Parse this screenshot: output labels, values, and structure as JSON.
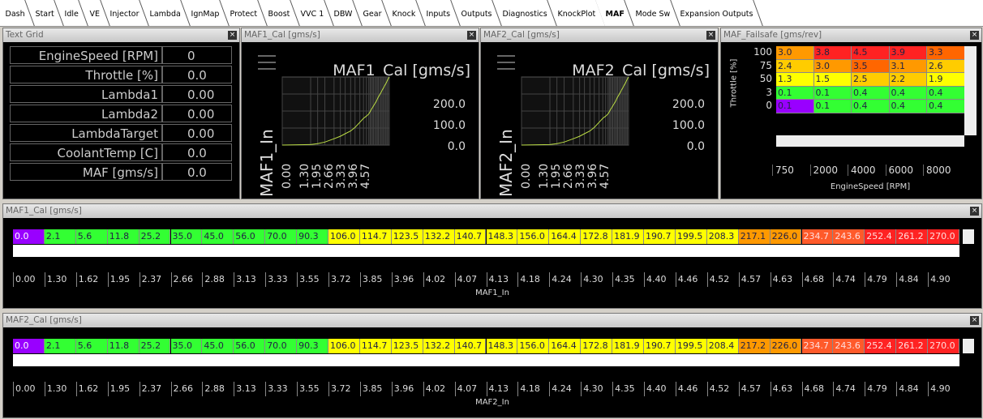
{
  "tabs": [
    "Dash",
    "Start",
    "Idle",
    "VE",
    "Injector",
    "Lambda",
    "IgnMap",
    "Protect",
    "Boost",
    "VVC 1",
    "DBW",
    "Gear",
    "Knock",
    "Inputs",
    "Outputs",
    "Diagnostics",
    "KnockPlot",
    "MAF",
    "Mode Sw",
    "Expansion Outputs"
  ],
  "text_grid": {
    "title": "Text Grid",
    "rows": [
      {
        "label": "EngineSpeed [RPM]",
        "value": "0"
      },
      {
        "label": "Throttle [%]",
        "value": "0.0"
      },
      {
        "label": "Lambda1",
        "value": "0.00"
      },
      {
        "label": "Lambda2",
        "value": "0.00"
      },
      {
        "label": "LambdaTarget",
        "value": "0.00"
      },
      {
        "label": "CoolantTemp [C]",
        "value": "0.0"
      },
      {
        "label": "MAF [gms/s]",
        "value": "0.0"
      }
    ]
  },
  "maf1_chart": {
    "title": "MAF1_Cal [gms/s]",
    "heading": "MAF1_Cal [gms/s]",
    "y_labels": [
      "200.0",
      "100.0",
      "0.0"
    ],
    "x_label": "MAF1_In",
    "x_labels": [
      "0.00",
      "1.30",
      "1.95",
      "2.66",
      "3.33",
      "3.96",
      "4.57"
    ]
  },
  "maf2_chart": {
    "title": "MAF2_Cal [gms/s]",
    "heading": "MAF2_Cal [gms/s]",
    "y_labels": [
      "200.0",
      "100.0",
      "0.0"
    ],
    "x_label": "MAF2_In",
    "x_labels": [
      "0.00",
      "1.30",
      "1.95",
      "2.66",
      "3.33",
      "3.96",
      "4.57"
    ]
  },
  "failsafe": {
    "title": "MAF_Failsafe [gms/rev]",
    "row_axis_label": "Throttle [%]",
    "col_axis_label": "EngineSpeed [RPM]",
    "row_labels": [
      "100",
      "75",
      "50",
      "3",
      "0"
    ],
    "col_labels": [
      "750",
      "2000",
      "4000",
      "6000",
      "8000"
    ],
    "cells": [
      [
        "3.0",
        "3.8",
        "4.5",
        "3.9",
        "3.3"
      ],
      [
        "2.4",
        "3.0",
        "3.5",
        "3.1",
        "2.6"
      ],
      [
        "1.3",
        "1.5",
        "2.5",
        "2.2",
        "1.9"
      ],
      [
        "0.1",
        "0.1",
        "0.4",
        "0.4",
        "0.4"
      ],
      [
        "0.1",
        "0.1",
        "0.4",
        "0.4",
        "0.4"
      ]
    ]
  },
  "maf1_table": {
    "title": "MAF1_Cal [gms/s]",
    "axis_label": "MAF1_In",
    "values": [
      "0.0",
      "2.1",
      "5.6",
      "11.8",
      "25.2",
      "35.0",
      "45.0",
      "56.0",
      "70.0",
      "90.3",
      "106.0",
      "114.7",
      "123.5",
      "132.2",
      "140.7",
      "148.3",
      "156.0",
      "164.4",
      "172.8",
      "181.9",
      "190.7",
      "199.5",
      "208.3",
      "217.1",
      "226.0",
      "234.7",
      "243.6",
      "252.4",
      "261.2",
      "270.0"
    ],
    "axis": [
      "0.00",
      "1.30",
      "1.62",
      "1.95",
      "2.37",
      "2.66",
      "2.88",
      "3.13",
      "3.33",
      "3.55",
      "3.72",
      "3.85",
      "3.96",
      "4.02",
      "4.07",
      "4.13",
      "4.18",
      "4.24",
      "4.30",
      "4.35",
      "4.40",
      "4.46",
      "4.52",
      "4.57",
      "4.63",
      "4.68",
      "4.74",
      "4.79",
      "4.84",
      "4.90"
    ]
  },
  "maf2_table": {
    "title": "MAF2_Cal [gms/s]",
    "axis_label": "MAF2_In",
    "values": [
      "0.0",
      "2.1",
      "5.6",
      "11.8",
      "25.2",
      "35.0",
      "45.0",
      "56.0",
      "70.0",
      "90.3",
      "106.0",
      "114.7",
      "123.5",
      "132.2",
      "140.7",
      "148.3",
      "156.0",
      "164.4",
      "172.8",
      "181.9",
      "190.7",
      "199.5",
      "208.4",
      "217.2",
      "226.0",
      "234.7",
      "243.6",
      "252.4",
      "261.2",
      "270.0"
    ],
    "axis": [
      "0.00",
      "1.30",
      "1.62",
      "1.95",
      "2.37",
      "2.66",
      "2.88",
      "3.13",
      "3.33",
      "3.55",
      "3.72",
      "3.85",
      "3.96",
      "4.02",
      "4.07",
      "4.13",
      "4.18",
      "4.24",
      "4.30",
      "4.35",
      "4.40",
      "4.46",
      "4.52",
      "4.57",
      "4.63",
      "4.68",
      "4.74",
      "4.79",
      "4.84",
      "4.90"
    ]
  }
}
